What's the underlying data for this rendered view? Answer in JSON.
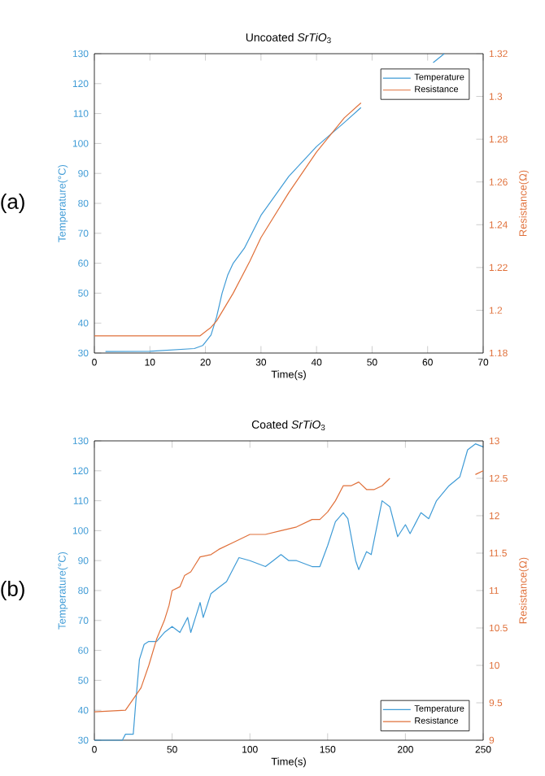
{
  "chart_data": [
    {
      "type": "line",
      "title": "Uncoated *SrTiO*$_{3}$",
      "xlabel": "Time(s)",
      "ylabel": "Temperature(°C)",
      "y2label": "Resistance(Ω)",
      "annotations": [
        "(a)"
      ],
      "legend": "top right",
      "xlim": [
        0,
        70
      ],
      "xticks": [
        0,
        10,
        20,
        30,
        40,
        50,
        60,
        70
      ],
      "ylim": [
        30,
        130
      ],
      "yticks": [
        30,
        40,
        50,
        60,
        70,
        80,
        90,
        100,
        110,
        120,
        130
      ],
      "y2lim": [
        1.18,
        1.32
      ],
      "y2ticks": [
        1.18,
        1.2,
        1.22,
        1.24,
        1.26,
        1.28,
        1.3,
        1.32
      ],
      "series": [
        {
          "name": "Temperature",
          "color": "#3f9bd6",
          "x": [
            2,
            10,
            18,
            19.5,
            21,
            22,
            23,
            24,
            25,
            27,
            30,
            35,
            40,
            45,
            48,
            55,
            61,
            63
          ],
          "values": [
            30.5,
            30.6,
            31.5,
            32.5,
            36,
            42,
            50,
            56,
            60,
            65,
            76,
            89,
            99,
            107,
            112,
            null,
            127,
            130
          ]
        },
        {
          "name": "Resistance",
          "axis": "y2",
          "color": "#e0703a",
          "x": [
            0,
            10,
            19,
            20,
            21,
            22,
            25,
            28,
            30,
            35,
            40,
            45,
            48
          ],
          "values": [
            1.188,
            1.188,
            1.188,
            1.19,
            1.192,
            1.195,
            1.208,
            1.223,
            1.234,
            1.255,
            1.274,
            1.29,
            1.297
          ]
        }
      ]
    },
    {
      "type": "line",
      "title": "Coated *SrTiO*$_{3}$",
      "xlabel": "Time(s)",
      "ylabel": "Temperature(°C)",
      "y2label": "Resistance(Ω)",
      "annotations": [
        "(b)"
      ],
      "legend": "bottom right",
      "xlim": [
        0,
        250
      ],
      "xticks": [
        0,
        50,
        100,
        150,
        200,
        250
      ],
      "ylim": [
        30,
        130
      ],
      "yticks": [
        30,
        40,
        50,
        60,
        70,
        80,
        90,
        100,
        110,
        120,
        130
      ],
      "y2lim": [
        9,
        13
      ],
      "y2ticks": [
        9,
        9.5,
        10,
        10.5,
        11,
        11.5,
        12,
        12.5,
        13
      ],
      "series": [
        {
          "name": "Temperature",
          "color": "#3f9bd6",
          "x": [
            0,
            18,
            20,
            25,
            27,
            29,
            32,
            35,
            40,
            45,
            50,
            55,
            60,
            62,
            65,
            68,
            70,
            75,
            80,
            85,
            90,
            93,
            100,
            110,
            115,
            120,
            125,
            130,
            140,
            145,
            150,
            155,
            160,
            163,
            168,
            170,
            175,
            178,
            185,
            190,
            195,
            200,
            203,
            210,
            215,
            220,
            228,
            235,
            240,
            245,
            250
          ],
          "values": [
            30,
            30,
            32,
            32,
            45,
            57,
            62,
            63,
            63,
            66,
            68,
            66,
            71,
            66,
            71,
            76,
            71,
            79,
            81,
            83,
            88,
            91,
            90,
            88,
            90,
            92,
            90,
            90,
            88,
            88,
            95,
            103,
            106,
            104,
            90,
            87,
            93,
            92,
            110,
            108,
            98,
            102,
            99,
            106,
            104,
            110,
            115,
            118,
            127,
            129,
            128
          ]
        },
        {
          "name": "Resistance",
          "axis": "y2",
          "color": "#e0703a",
          "x": [
            0,
            20,
            25,
            30,
            35,
            40,
            45,
            48,
            50,
            55,
            58,
            62,
            65,
            68,
            75,
            80,
            90,
            100,
            110,
            120,
            130,
            140,
            145,
            150,
            155,
            160,
            165,
            170,
            175,
            180,
            185,
            190,
            215,
            245,
            250
          ],
          "values": [
            9.38,
            9.4,
            9.55,
            9.7,
            10.0,
            10.35,
            10.6,
            10.8,
            11.0,
            11.05,
            11.2,
            11.25,
            11.35,
            11.45,
            11.48,
            11.55,
            11.65,
            11.75,
            11.75,
            11.8,
            11.85,
            11.95,
            11.95,
            12.05,
            12.2,
            12.4,
            12.4,
            12.45,
            12.35,
            12.35,
            12.4,
            12.5,
            null,
            12.55,
            12.6
          ]
        }
      ]
    }
  ]
}
